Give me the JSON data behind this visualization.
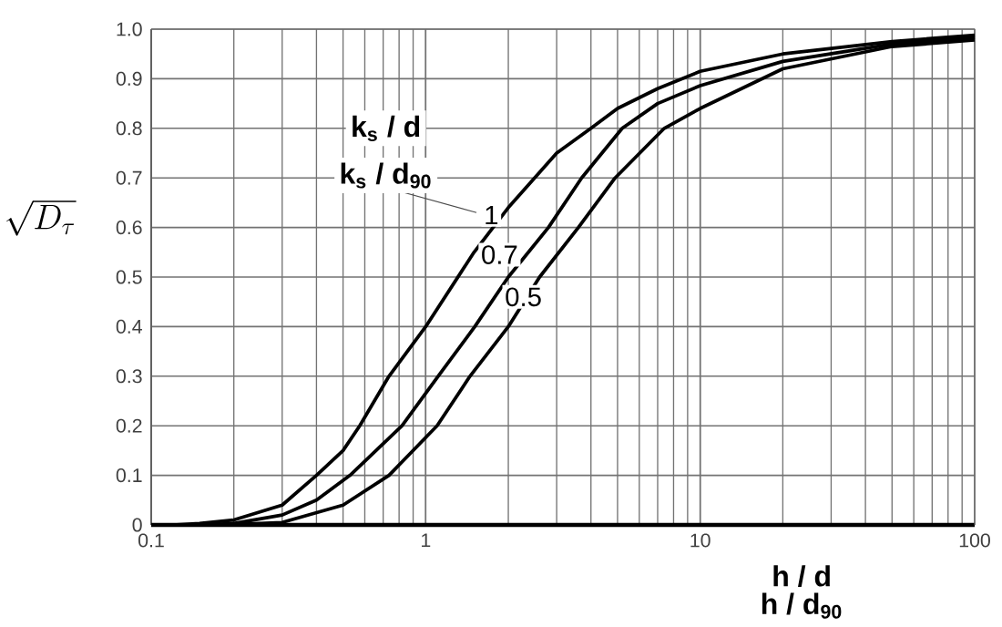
{
  "chart_data": {
    "type": "line",
    "xlabel": "h / d",
    "ylabel": "\\sqrt{D_{\\tau}}",
    "legend_title": "k$_{s}$ / d",
    "annotations": [
      "k$_{s}$ / d$_{90}$",
      "h / d$_{90}$"
    ],
    "log": "x",
    "grid": true,
    "line_style": "solid",
    "marker": "none",
    "xlim": [
      0.1,
      100
    ],
    "xticks": [
      0.1,
      1,
      10,
      100
    ],
    "ylim": [
      0,
      1
    ],
    "yticks": [
      0,
      0.1,
      0.2,
      0.3,
      0.4,
      0.5,
      0.6,
      0.7,
      0.8,
      0.9,
      {
        "value": 1,
        "label": "1.0"
      }
    ],
    "series": [
      {
        "name": "1",
        "color": "#000000",
        "x": [
          0.12,
          0.15,
          0.2,
          0.3,
          0.4,
          0.5,
          0.575,
          0.735,
          1,
          1.5,
          2,
          3,
          4,
          5,
          7,
          10,
          20,
          50,
          100
        ],
        "values": [
          0,
          0.003,
          0.01,
          0.04,
          0.1,
          0.15,
          0.2,
          0.3,
          0.4,
          0.55,
          0.64,
          0.75,
          0.8,
          0.84,
          0.88,
          0.915,
          0.95,
          0.975,
          0.988
        ]
      },
      {
        "name": "0.7",
        "color": "#000000",
        "x": [
          0.15,
          0.2,
          0.3,
          0.4,
          0.53,
          0.82,
          1.11,
          1.51,
          2,
          2.8,
          3.7,
          5.2,
          7,
          10,
          20,
          50,
          100
        ],
        "values": [
          0,
          0.003,
          0.02,
          0.05,
          0.1,
          0.2,
          0.3,
          0.4,
          0.5,
          0.6,
          0.7,
          0.8,
          0.85,
          0.886,
          0.935,
          0.97,
          0.983
        ]
      },
      {
        "name": "0.5",
        "color": "#000000",
        "x": [
          0.18,
          0.3,
          0.5,
          0.735,
          1.1,
          1.45,
          2,
          2.6,
          3.6,
          4.9,
          7.4,
          10,
          20,
          50,
          100
        ],
        "values": [
          0,
          0.005,
          0.04,
          0.1,
          0.2,
          0.3,
          0.4,
          0.5,
          0.6,
          0.7,
          0.8,
          0.84,
          0.92,
          0.965,
          0.978
        ]
      }
    ]
  }
}
